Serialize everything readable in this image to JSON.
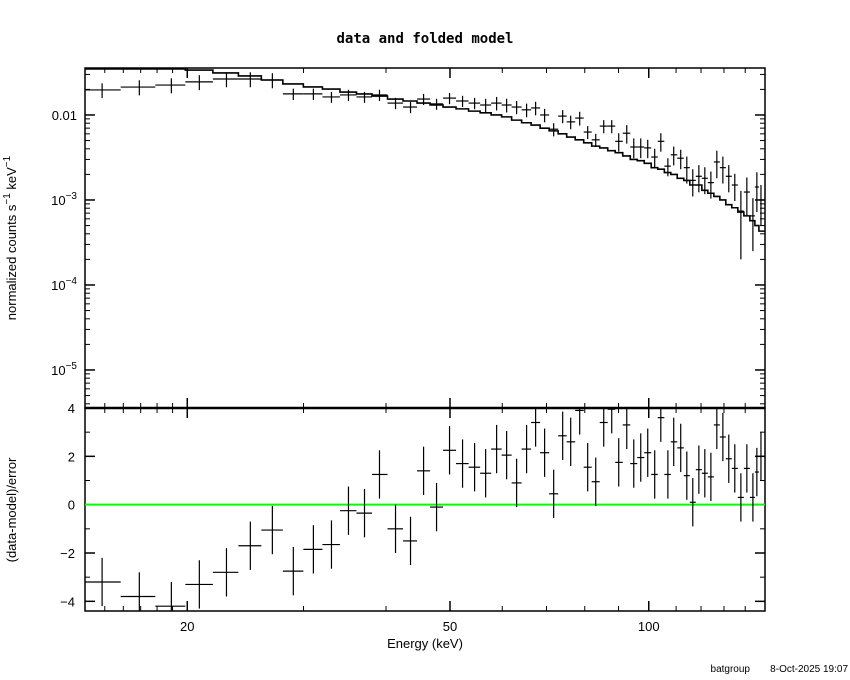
{
  "chart_data": [
    {
      "type": "scatter",
      "panel": "top",
      "title": "data and folded model",
      "ylabel": "normalized counts s^-1 keV^-1",
      "ylabel_parts": {
        "main": "normalized counts s",
        "exp1": "−1",
        "mid": " keV",
        "exp2": "−1"
      },
      "xscale": "log",
      "yscale": "log",
      "xlim": [
        14,
        150
      ],
      "ylim": [
        3.57e-06,
        0.0357
      ],
      "yticks": [
        {
          "value": 0.01,
          "label": "0.01"
        },
        {
          "value": 0.001,
          "base": "10",
          "exp": "−3"
        },
        {
          "value": 0.0001,
          "base": "10",
          "exp": "−4"
        },
        {
          "value": 1e-05,
          "base": "10",
          "exp": "−5"
        }
      ],
      "grid": false,
      "colors": {
        "data": "#000000",
        "model": "#000000"
      }
    },
    {
      "type": "scatter",
      "panel": "bottom",
      "xlabel": "Energy (keV)",
      "ylabel": "(data-model)/error",
      "xscale": "log",
      "xlim": [
        14,
        150
      ],
      "ylim": [
        -4.4,
        4
      ],
      "xticks": [
        {
          "value": 20,
          "label": "20"
        },
        {
          "value": 50,
          "label": "50"
        },
        {
          "value": 100,
          "label": "100"
        }
      ],
      "yticks": [
        {
          "value": 4,
          "label": "4"
        },
        {
          "value": 2,
          "label": "2"
        },
        {
          "value": 0,
          "label": "0"
        },
        {
          "value": -2,
          "label": "−2"
        },
        {
          "value": -4,
          "label": "−4"
        }
      ],
      "reference_line": 0,
      "grid": false,
      "colors": {
        "data": "#000000",
        "zero_line": "#00ff00"
      }
    }
  ],
  "spectrum": {
    "energy": [
      14.86,
      16.92,
      18.92,
      20.86,
      22.93,
      24.92,
      26.91,
      28.95,
      31.05,
      33.07,
      35.09,
      37.11,
      39.1,
      41.35,
      43.57,
      45.6,
      47.71,
      49.92,
      52.24,
      54.48,
      56.62,
      58.83,
      60.92,
      63.08,
      65.31,
      67.4,
      69.55,
      71.78,
      74.07,
      76.17,
      78.6,
      80.82,
      83.12,
      85.47,
      87.89,
      90.06,
      92.62,
      94.91,
      97.25,
      99.65,
      102.1,
      104.3,
      106.9,
      109.1,
      111.8,
      114.2,
      116.6,
      119.1,
      121.6,
      124.2,
      126.8,
      129.5,
      132.2,
      135.0,
      137.9,
      140.8,
      143.8,
      145.8,
      147.9
    ],
    "flux": [
      0.0197,
      0.0213,
      0.0225,
      0.0245,
      0.0265,
      0.0265,
      0.0258,
      0.0177,
      0.0177,
      0.0163,
      0.0172,
      0.0163,
      0.0172,
      0.0138,
      0.0124,
      0.0154,
      0.0135,
      0.0158,
      0.0146,
      0.0138,
      0.0131,
      0.0138,
      0.0131,
      0.0124,
      0.0115,
      0.0121,
      0.01,
      0.0068,
      0.0097,
      0.0083,
      0.0092,
      0.0063,
      0.0051,
      0.0074,
      0.0074,
      0.0049,
      0.0061,
      0.0042,
      0.0042,
      0.0041,
      0.0032,
      0.0049,
      0.0025,
      0.0034,
      0.0031,
      0.0024,
      0.0017,
      0.0019,
      0.0018,
      0.0016,
      0.0028,
      0.0024,
      0.0019,
      0.0015,
      0.00074,
      0.00124,
      0.00065,
      0.00142,
      0.001
    ],
    "flux_err": [
      0.0039,
      0.0043,
      0.0045,
      0.0049,
      0.0053,
      0.0053,
      0.0052,
      0.0027,
      0.0027,
      0.0024,
      0.0026,
      0.0024,
      0.0026,
      0.0021,
      0.0019,
      0.0023,
      0.002,
      0.0024,
      0.0022,
      0.0021,
      0.0024,
      0.0025,
      0.0024,
      0.0022,
      0.0021,
      0.0022,
      0.0018,
      0.0012,
      0.0017,
      0.0015,
      0.0017,
      0.0011,
      0.0009,
      0.0013,
      0.0013,
      0.0012,
      0.0015,
      0.0011,
      0.0011,
      0.001,
      0.0008,
      0.0012,
      0.0006,
      0.00085,
      0.0008,
      0.00084,
      0.0006,
      0.00067,
      0.00063,
      0.00056,
      0.001,
      0.00084,
      0.00067,
      0.00053,
      0.00054,
      0.0006,
      0.0004,
      0.0007,
      0.0005
    ],
    "model": [
      0.035,
      0.04,
      0.038,
      0.0338,
      0.0312,
      0.0288,
      0.0258,
      0.0232,
      0.0214,
      0.0202,
      0.0186,
      0.0177,
      0.0167,
      0.0154,
      0.0146,
      0.0138,
      0.0131,
      0.0124,
      0.0118,
      0.0111,
      0.0106,
      0.01,
      0.0095,
      0.0087,
      0.0081,
      0.0076,
      0.007,
      0.0065,
      0.006,
      0.0055,
      0.0051,
      0.0047,
      0.0043,
      0.0041,
      0.0038,
      0.0036,
      0.0033,
      0.003,
      0.0029,
      0.0027,
      0.0024,
      0.0023,
      0.0021,
      0.002,
      0.0018,
      0.0017,
      0.0015,
      0.0015,
      0.0013,
      0.0012,
      0.0011,
      0.001,
      0.00088,
      0.00081,
      0.00072,
      0.00065,
      0.00057,
      0.0005,
      0.00043
    ],
    "residual": [
      -3.2,
      -3.8,
      -4.2,
      -3.3,
      -2.8,
      -1.7,
      -1.05,
      -2.75,
      -1.85,
      -1.65,
      -0.25,
      -0.35,
      1.25,
      -1.0,
      -1.5,
      1.4,
      -0.1,
      2.25,
      1.7,
      1.55,
      1.3,
      2.3,
      2.05,
      0.9,
      2.3,
      3.4,
      2.15,
      0.45,
      2.85,
      2.6,
      3.9,
      1.55,
      0.95,
      3.4,
      3.95,
      1.75,
      3.3,
      1.7,
      1.95,
      2.15,
      1.25,
      3.6,
      1.25,
      2.6,
      2.35,
      1.2,
      0.1,
      1.45,
      1.3,
      1.15,
      3.3,
      2.8,
      1.9,
      1.5,
      0.3,
      1.5,
      0.3,
      1.35,
      2.0
    ]
  },
  "footer": {
    "user": "batgroup",
    "date": "8-Oct-2025 19:07"
  }
}
